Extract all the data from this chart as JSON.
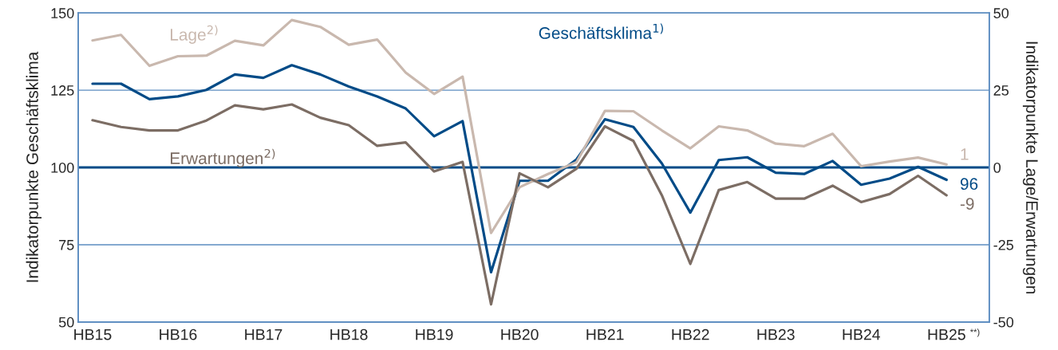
{
  "chart_data": {
    "type": "line",
    "categories": [
      "HB15",
      null,
      null,
      "HB16",
      null,
      null,
      "HB17",
      null,
      null,
      "HB18",
      null,
      null,
      "HB19",
      null,
      null,
      "HB20",
      null,
      null,
      "HB21",
      null,
      null,
      "HB22",
      null,
      null,
      "HB23",
      null,
      null,
      "HB24",
      null,
      null,
      "HB25",
      "**)"
    ],
    "ylabel": "Indikatorpunkte Geschäftsklima",
    "y2label": "Indikatorpunkte Lage/Erwartungen",
    "ylim": [
      50,
      150
    ],
    "yticks": [
      50,
      75,
      100,
      125,
      150
    ],
    "y2lim": [
      -50,
      50
    ],
    "y2ticks": [
      -50,
      -25,
      0,
      25,
      50
    ],
    "grid": "y",
    "legend": false,
    "line_style": "solid",
    "marker": "none",
    "ref_lines": [
      {
        "axis": "y",
        "value": 100,
        "label": null,
        "color": "#004b87"
      }
    ],
    "series": [
      {
        "name": "Lage$^{2)}$",
        "color": "#c9b8ae",
        "axis": "y2",
        "values": [
          41.1,
          42.9,
          32.9,
          36.0,
          36.2,
          41.0,
          39.5,
          47.7,
          45.5,
          39.7,
          41.4,
          30.7,
          23.8,
          29.4,
          -21.2,
          -6.4,
          -2.1,
          1.7,
          18.3,
          18.2,
          12.0,
          6.2,
          13.3,
          12.0,
          7.7,
          6.9,
          10.9,
          0.4,
          1.9,
          3.2,
          1,
          null
        ],
        "value_labels": [
          null,
          null,
          null,
          null,
          null,
          null,
          null,
          null,
          null,
          null,
          null,
          null,
          null,
          null,
          null,
          null,
          null,
          null,
          null,
          null,
          null,
          null,
          null,
          null,
          null,
          null,
          null,
          null,
          null,
          null,
          "1",
          null
        ]
      },
      {
        "name": "Geschäftsklima$^{1)}$",
        "color": "#004b87",
        "axis": "y",
        "values": [
          127.1,
          127.1,
          122.1,
          123.0,
          125.1,
          130.1,
          129.0,
          133.1,
          130.1,
          126.2,
          123.0,
          119.1,
          110.1,
          115.0,
          66.1,
          95.7,
          95.7,
          102.6,
          115.6,
          113.1,
          101.3,
          85.4,
          102.4,
          103.3,
          98.3,
          97.9,
          102.1,
          94.4,
          96.4,
          100.2,
          96,
          null
        ],
        "value_labels": [
          null,
          null,
          null,
          null,
          null,
          null,
          null,
          null,
          null,
          null,
          null,
          null,
          null,
          null,
          null,
          null,
          null,
          null,
          null,
          null,
          null,
          null,
          null,
          null,
          null,
          null,
          null,
          null,
          null,
          null,
          "96",
          null
        ]
      },
      {
        "name": "Erwartungen$^{2)}$",
        "color": "#7c6d64",
        "axis": "y2",
        "values": [
          15.3,
          13.1,
          12.0,
          12.0,
          15.2,
          20.1,
          18.8,
          20.4,
          16.1,
          13.7,
          7.0,
          8.1,
          -1.3,
          1.8,
          -44.3,
          -1.9,
          -6.4,
          -0.4,
          13.3,
          8.6,
          -9.0,
          -31.2,
          -7.3,
          -4.7,
          -10.1,
          -10.1,
          -5.9,
          -11.2,
          -8.6,
          -2.7,
          -9,
          null
        ],
        "value_labels": [
          null,
          null,
          null,
          null,
          null,
          null,
          null,
          null,
          null,
          null,
          null,
          null,
          null,
          null,
          null,
          null,
          null,
          null,
          null,
          null,
          null,
          null,
          null,
          null,
          null,
          null,
          null,
          null,
          null,
          null,
          "-9",
          null
        ]
      }
    ]
  }
}
